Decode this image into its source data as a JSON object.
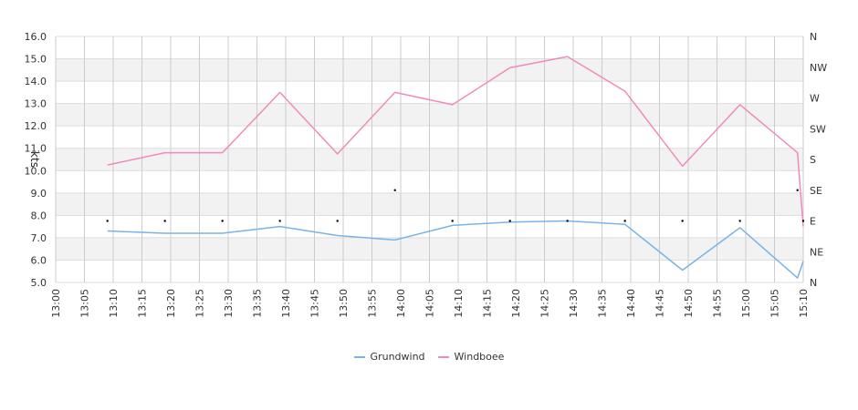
{
  "chart_data": {
    "type": "line",
    "xlabel": "",
    "ylabel": "kts",
    "ylim": [
      5.0,
      16.0
    ],
    "yticks": [
      "5.0",
      "6.0",
      "7.0",
      "8.0",
      "9.0",
      "10.0",
      "11.0",
      "12.0",
      "13.0",
      "14.0",
      "15.0",
      "16.0"
    ],
    "y2ticks": [
      "N",
      "NE",
      "E",
      "SE",
      "S",
      "SW",
      "W",
      "NW",
      "N"
    ],
    "xticks": [
      "13:00",
      "13:05",
      "13:10",
      "13:15",
      "13:20",
      "13:25",
      "13:30",
      "13:35",
      "13:40",
      "13:45",
      "13:50",
      "13:55",
      "14:00",
      "14:05",
      "14:10",
      "14:15",
      "14:20",
      "14:25",
      "14:30",
      "14:35",
      "14:40",
      "14:45",
      "14:50",
      "14:55",
      "15:00",
      "15:05",
      "15:10"
    ],
    "grid": true,
    "legend_position": "bottom",
    "series": [
      {
        "name": "Grundwind",
        "color": "#7ab3e6",
        "points": [
          [
            "13:09",
            7.3
          ],
          [
            "13:19",
            7.2
          ],
          [
            "13:29",
            7.2
          ],
          [
            "13:39",
            7.5
          ],
          [
            "13:49",
            7.1
          ],
          [
            "13:59",
            6.9
          ],
          [
            "14:09",
            7.55
          ],
          [
            "14:19",
            7.7
          ],
          [
            "14:29",
            7.75
          ],
          [
            "14:39",
            7.6
          ],
          [
            "14:49",
            5.55
          ],
          [
            "14:59",
            7.45
          ],
          [
            "15:09",
            5.2
          ],
          [
            "15:10",
            5.95
          ]
        ]
      },
      {
        "name": "Windboee",
        "color": "#f08bbb",
        "points": [
          [
            "13:09",
            10.25
          ],
          [
            "13:19",
            10.8
          ],
          [
            "13:29",
            10.8
          ],
          [
            "13:39",
            13.5
          ],
          [
            "13:49",
            10.75
          ],
          [
            "13:59",
            13.5
          ],
          [
            "14:09",
            12.95
          ],
          [
            "14:19",
            14.6
          ],
          [
            "14:29",
            15.1
          ],
          [
            "14:39",
            13.55
          ],
          [
            "14:49",
            10.2
          ],
          [
            "14:59",
            12.95
          ],
          [
            "15:09",
            10.8
          ],
          [
            "15:10",
            7.5
          ]
        ]
      }
    ],
    "direction_markers": [
      [
        "13:09",
        "E"
      ],
      [
        "13:19",
        "E"
      ],
      [
        "13:29",
        "E"
      ],
      [
        "13:39",
        "E"
      ],
      [
        "13:49",
        "E"
      ],
      [
        "13:59",
        "SE"
      ],
      [
        "14:09",
        "E"
      ],
      [
        "14:19",
        "E"
      ],
      [
        "14:29",
        "E"
      ],
      [
        "14:39",
        "E"
      ],
      [
        "14:49",
        "E"
      ],
      [
        "14:59",
        "E"
      ],
      [
        "15:09",
        "SE"
      ],
      [
        "15:10",
        "E"
      ]
    ]
  },
  "legend": {
    "items": [
      {
        "label": "Grundwind",
        "color": "#7ab3e6"
      },
      {
        "label": "Windboee",
        "color": "#f08bbb"
      }
    ]
  }
}
